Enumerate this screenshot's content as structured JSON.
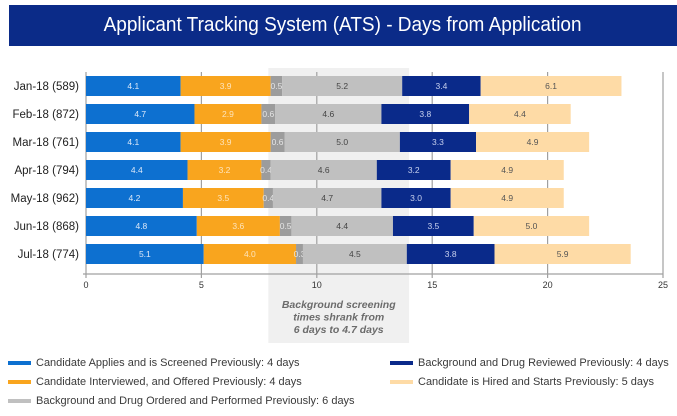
{
  "chart_data": {
    "type": "bar",
    "orientation": "horizontal",
    "stacked": true,
    "title": "Applicant Tracking System (ATS) - Days from Application",
    "xlabel": "",
    "ylabel": "",
    "xlim": [
      0,
      25
    ],
    "xticks": [
      0,
      5,
      10,
      15,
      20,
      25
    ],
    "x_tick_labels": [
      "0",
      "5",
      "10",
      "15",
      "20",
      "25"
    ],
    "grid": "vertical",
    "legend_position": "bottom",
    "categories": [
      "Jan-18 (589)",
      "Feb-18 (872)",
      "Mar-18 (761)",
      "Apr-18 (794)",
      "May-18 (962)",
      "Jun-18 (868)",
      "Jul-18 (774)"
    ],
    "series": [
      {
        "name": "Candidate Applies and is Screened",
        "color": "#0d70d0",
        "label_color": "#dce8f8",
        "values": [
          4.1,
          4.7,
          4.1,
          4.4,
          4.2,
          4.8,
          5.1
        ],
        "labels": [
          "4.1",
          "4.7",
          "4.1",
          "4.4",
          "4.2",
          "4.8",
          "5.1"
        ]
      },
      {
        "name": "Candidate Interviewed, and Offered",
        "color": "#f9a51e",
        "label_color": "#fde4bc",
        "values": [
          3.9,
          2.9,
          3.9,
          3.2,
          3.5,
          3.6,
          4.0
        ],
        "labels": [
          "3.9",
          "2.9",
          "3.9",
          "3.2",
          "3.5",
          "3.6",
          "4.0"
        ]
      },
      {
        "name": "",
        "color": "#9c9c9c",
        "label_color": "#e4e4e4",
        "values": [
          0.5,
          0.6,
          0.6,
          0.4,
          0.4,
          0.5,
          0.3
        ],
        "labels": [
          "0.5",
          "0.6",
          "0.6",
          "0.4",
          "0.4",
          "0.5",
          "0.3"
        ]
      },
      {
        "name": "Background and Drug Ordered and Performed",
        "color": "#c0c0c0",
        "label_color": "#444444",
        "values": [
          5.2,
          4.6,
          5.0,
          4.6,
          4.7,
          4.4,
          4.5
        ],
        "labels": [
          "5.2",
          "4.6",
          "5.0",
          "4.6",
          "4.7",
          "4.4",
          "4.5"
        ]
      },
      {
        "name": "Background and Drug Reviewed",
        "color": "#0a2a8a",
        "label_color": "#c8d1ee",
        "values": [
          3.4,
          3.8,
          3.3,
          3.2,
          3.0,
          3.5,
          3.8
        ],
        "labels": [
          "3.4",
          "3.8",
          "3.3",
          "3.2",
          "3.0",
          "3.5",
          "3.8"
        ]
      },
      {
        "name": "Candidate is Hired and Starts",
        "color": "#fedba6",
        "label_color": "#555555",
        "values": [
          6.1,
          4.4,
          4.9,
          4.9,
          4.9,
          5.0,
          5.9
        ],
        "labels": [
          "6.1",
          "4.4",
          "4.9",
          "4.9",
          "4.9",
          "5.0",
          "5.9"
        ]
      }
    ],
    "legend": [
      {
        "label": "Candidate Applies and is Screened Previously: 4 days",
        "series_index": 0
      },
      {
        "label": "Background and Drug Reviewed Previously: 4 days",
        "series_index": 4
      },
      {
        "label": "Candidate Interviewed, and Offered Previously: 4 days",
        "series_index": 1
      },
      {
        "label": "Candidate is Hired and Starts Previously: 5 days",
        "series_index": 5
      },
      {
        "label": "Background and Drug Ordered and Performed Previously: 6 days",
        "series_index": 3
      }
    ],
    "annotation": {
      "lines": [
        "Background screening",
        "times shrank from",
        "6 days to 4.7 days"
      ],
      "highlight_x_range": [
        7.9,
        14.0
      ],
      "highlight_color": "#f0f0f0",
      "text_color": "#6b6b6b"
    },
    "colors": {
      "title_background": "#0b2b88",
      "gridline": "#a0a0a0"
    }
  }
}
